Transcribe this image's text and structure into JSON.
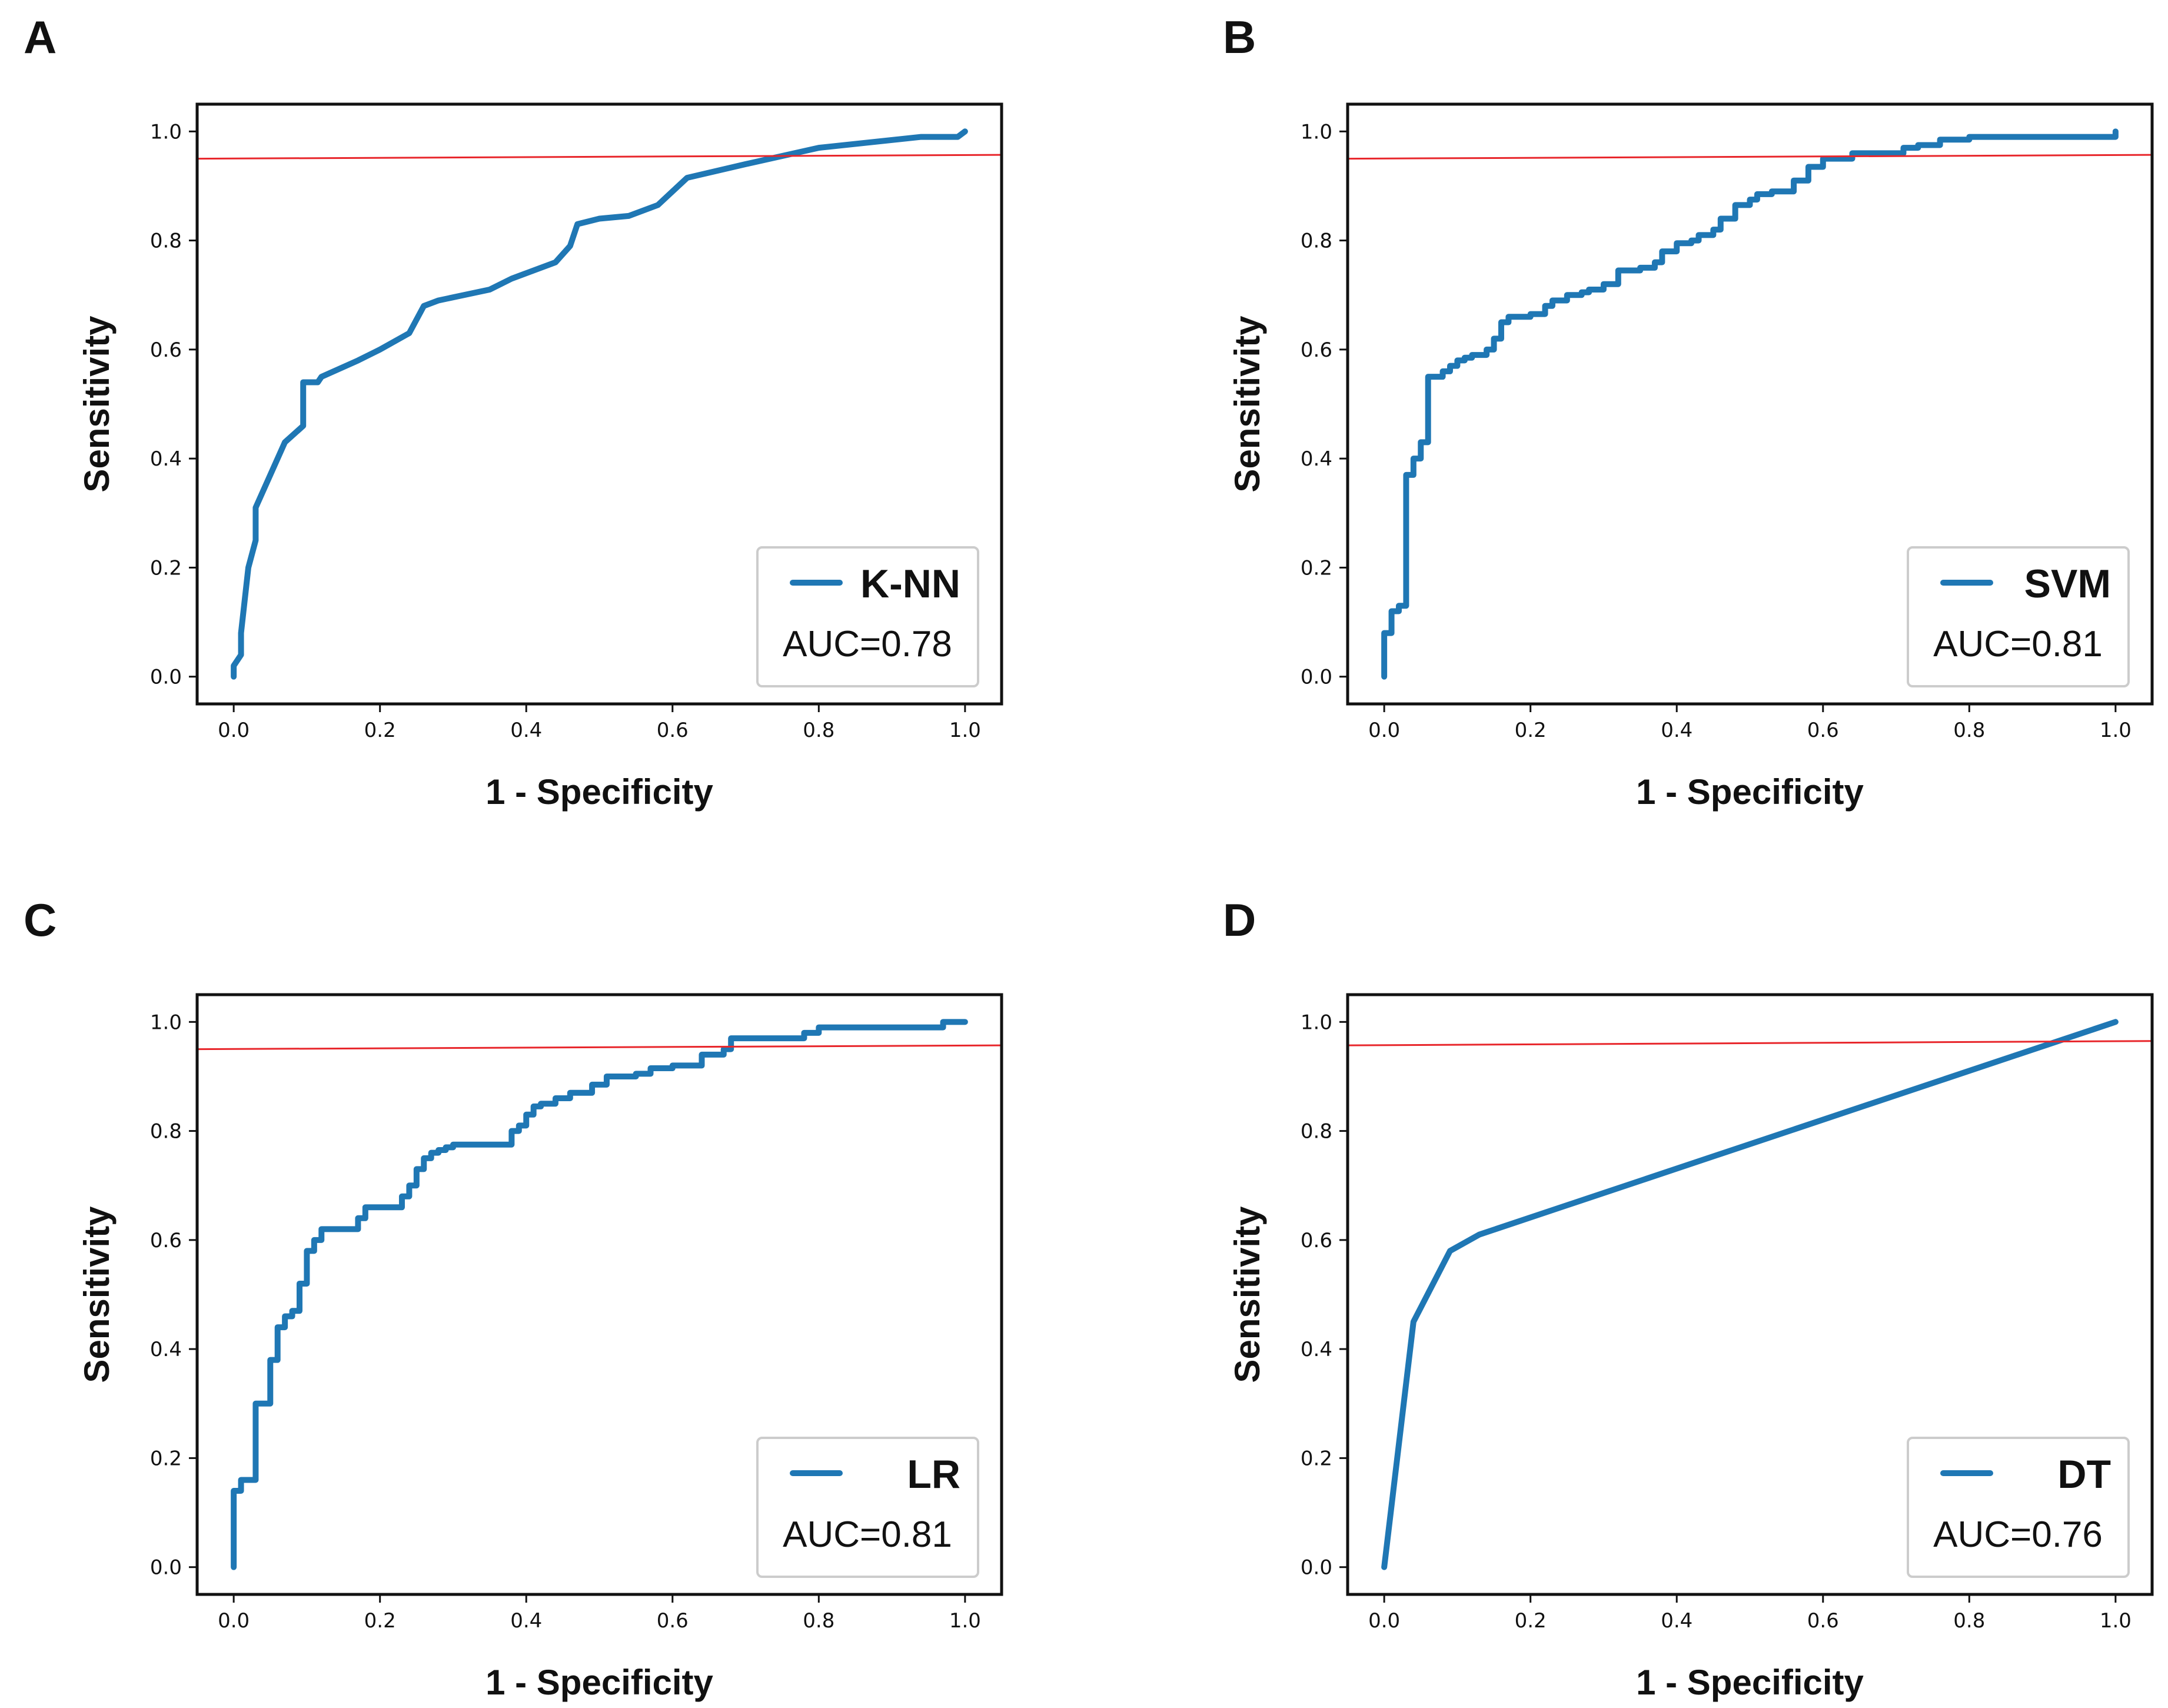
{
  "chart_data": [
    {
      "type": "line",
      "panel": "A",
      "xlabel": "1 - Specificity",
      "ylabel": "Sensitivity",
      "xlim": [
        -0.05,
        1.05
      ],
      "ylim": [
        -0.05,
        1.05
      ],
      "xticks": [
        "0.0",
        "0.2",
        "0.4",
        "0.6",
        "0.8",
        "1.0"
      ],
      "yticks": [
        "0.0",
        "0.2",
        "0.4",
        "0.6",
        "0.8",
        "1.0"
      ],
      "grid": false,
      "legend_position": "bottom-right",
      "legend_name": "K-NN",
      "auc_label": "AUC=0.78",
      "series": [
        {
          "name": "K-NN",
          "x": [
            0.0,
            0.0,
            0.01,
            0.01,
            0.02,
            0.03,
            0.03,
            0.05,
            0.07,
            0.095,
            0.095,
            0.115,
            0.12,
            0.17,
            0.2,
            0.24,
            0.26,
            0.28,
            0.35,
            0.38,
            0.4,
            0.44,
            0.46,
            0.47,
            0.5,
            0.54,
            0.58,
            0.6,
            0.62,
            0.7,
            0.8,
            0.94,
            0.99,
            1.0
          ],
          "y": [
            0.0,
            0.02,
            0.04,
            0.08,
            0.2,
            0.25,
            0.31,
            0.37,
            0.43,
            0.46,
            0.54,
            0.54,
            0.55,
            0.58,
            0.6,
            0.63,
            0.68,
            0.69,
            0.71,
            0.73,
            0.74,
            0.76,
            0.79,
            0.83,
            0.84,
            0.845,
            0.865,
            0.89,
            0.915,
            0.94,
            0.97,
            0.99,
            0.99,
            1.0
          ]
        },
        {
          "name": "reference",
          "x": [
            -0.05,
            1.05
          ],
          "y": [
            0.95,
            0.957
          ]
        }
      ]
    },
    {
      "type": "line",
      "panel": "B",
      "xlabel": "1 - Specificity",
      "ylabel": "Sensitivity",
      "xlim": [
        -0.05,
        1.05
      ],
      "ylim": [
        -0.05,
        1.05
      ],
      "xticks": [
        "0.0",
        "0.2",
        "0.4",
        "0.6",
        "0.8",
        "1.0"
      ],
      "yticks": [
        "0.0",
        "0.2",
        "0.4",
        "0.6",
        "0.8",
        "1.0"
      ],
      "grid": false,
      "legend_position": "bottom-right",
      "legend_name": "SVM",
      "auc_label": "AUC=0.81",
      "series": [
        {
          "name": "SVM",
          "step": true,
          "x": [
            0.0,
            0.0,
            0.01,
            0.02,
            0.03,
            0.04,
            0.05,
            0.06,
            0.08,
            0.09,
            0.1,
            0.11,
            0.12,
            0.14,
            0.15,
            0.16,
            0.17,
            0.2,
            0.22,
            0.23,
            0.25,
            0.27,
            0.28,
            0.3,
            0.32,
            0.35,
            0.37,
            0.38,
            0.4,
            0.42,
            0.43,
            0.45,
            0.46,
            0.48,
            0.5,
            0.51,
            0.53,
            0.56,
            0.58,
            0.6,
            0.64,
            0.68,
            0.71,
            0.73,
            0.76,
            0.8,
            0.9,
            1.0
          ],
          "y": [
            0.0,
            0.08,
            0.12,
            0.13,
            0.37,
            0.4,
            0.43,
            0.55,
            0.56,
            0.57,
            0.58,
            0.585,
            0.59,
            0.6,
            0.62,
            0.65,
            0.66,
            0.665,
            0.68,
            0.69,
            0.7,
            0.705,
            0.71,
            0.72,
            0.745,
            0.75,
            0.76,
            0.78,
            0.795,
            0.8,
            0.81,
            0.82,
            0.84,
            0.865,
            0.875,
            0.885,
            0.89,
            0.91,
            0.935,
            0.95,
            0.96,
            0.96,
            0.97,
            0.975,
            0.985,
            0.99,
            0.99,
            1.0
          ]
        },
        {
          "name": "reference",
          "x": [
            -0.05,
            1.05
          ],
          "y": [
            0.95,
            0.957
          ]
        }
      ]
    },
    {
      "type": "line",
      "panel": "C",
      "xlabel": "1 - Specificity",
      "ylabel": "Sensitivity",
      "xlim": [
        -0.05,
        1.05
      ],
      "ylim": [
        -0.05,
        1.05
      ],
      "xticks": [
        "0.0",
        "0.2",
        "0.4",
        "0.6",
        "0.8",
        "1.0"
      ],
      "yticks": [
        "0.0",
        "0.2",
        "0.4",
        "0.6",
        "0.8",
        "1.0"
      ],
      "grid": false,
      "legend_position": "bottom-right",
      "legend_name": "LR",
      "auc_label": "AUC=0.81",
      "series": [
        {
          "name": "LR",
          "step": true,
          "x": [
            0.0,
            0.0,
            0.01,
            0.03,
            0.05,
            0.06,
            0.07,
            0.08,
            0.09,
            0.1,
            0.11,
            0.12,
            0.13,
            0.17,
            0.18,
            0.19,
            0.23,
            0.24,
            0.25,
            0.26,
            0.27,
            0.28,
            0.29,
            0.3,
            0.32,
            0.38,
            0.39,
            0.4,
            0.41,
            0.42,
            0.44,
            0.46,
            0.49,
            0.51,
            0.55,
            0.57,
            0.6,
            0.64,
            0.67,
            0.68,
            0.73,
            0.78,
            0.8,
            0.87,
            0.96,
            0.97,
            1.0
          ],
          "y": [
            0.0,
            0.14,
            0.16,
            0.3,
            0.38,
            0.44,
            0.46,
            0.47,
            0.52,
            0.58,
            0.6,
            0.62,
            0.62,
            0.64,
            0.66,
            0.66,
            0.68,
            0.7,
            0.73,
            0.75,
            0.76,
            0.765,
            0.77,
            0.775,
            0.775,
            0.8,
            0.81,
            0.83,
            0.845,
            0.85,
            0.86,
            0.87,
            0.885,
            0.9,
            0.905,
            0.915,
            0.92,
            0.94,
            0.95,
            0.97,
            0.97,
            0.98,
            0.99,
            0.99,
            0.99,
            1.0,
            1.0
          ]
        },
        {
          "name": "reference",
          "x": [
            -0.05,
            1.05
          ],
          "y": [
            0.95,
            0.957
          ]
        }
      ]
    },
    {
      "type": "line",
      "panel": "D",
      "xlabel": "1 - Specificity",
      "ylabel": "Sensitivity",
      "xlim": [
        -0.05,
        1.05
      ],
      "ylim": [
        -0.05,
        1.05
      ],
      "xticks": [
        "0.0",
        "0.2",
        "0.4",
        "0.6",
        "0.8",
        "1.0"
      ],
      "yticks": [
        "0.0",
        "0.2",
        "0.4",
        "0.6",
        "0.8",
        "1.0"
      ],
      "grid": false,
      "legend_position": "bottom-right",
      "legend_name": "DT",
      "auc_label": "AUC=0.76",
      "series": [
        {
          "name": "DT",
          "x": [
            0.0,
            0.04,
            0.09,
            0.13,
            1.0
          ],
          "y": [
            0.0,
            0.45,
            0.58,
            0.61,
            1.0
          ]
        },
        {
          "name": "reference",
          "x": [
            -0.05,
            1.05
          ],
          "y": [
            0.957,
            0.965
          ]
        }
      ]
    }
  ],
  "colors": {
    "roc_line": "#1f77b4",
    "reference_line": "#e8262b",
    "axis": "#111111",
    "legend_border": "#cccccc"
  }
}
